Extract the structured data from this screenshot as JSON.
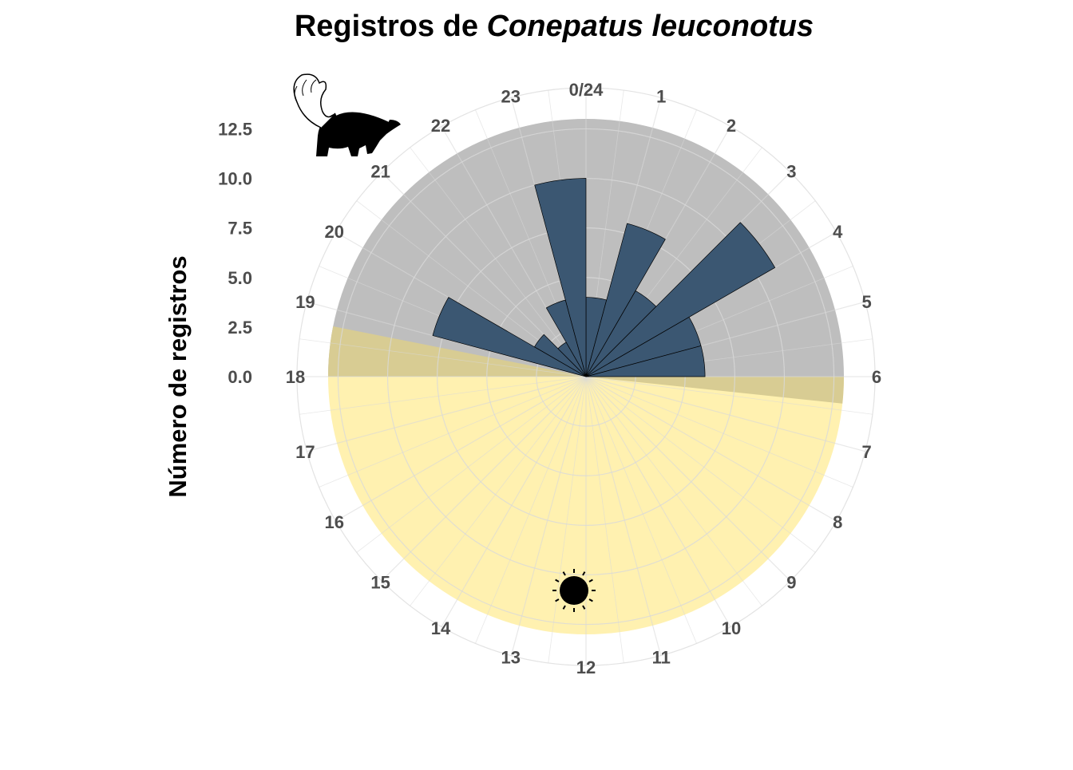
{
  "chart_data": {
    "type": "bar",
    "coordinate_system": "polar",
    "title_prefix": "Registros de ",
    "title_species": "Conepatus leuconotus",
    "ylabel": "Número de registros",
    "y_ticks": [
      "0.0",
      "2.5",
      "5.0",
      "7.5",
      "10.0",
      "12.5"
    ],
    "y_tick_values": [
      0,
      2.5,
      5,
      7.5,
      10,
      12.5
    ],
    "ylim": [
      0,
      13
    ],
    "hour_labels": [
      "0/24",
      "1",
      "2",
      "3",
      "4",
      "5",
      "6",
      "7",
      "8",
      "9",
      "10",
      "11",
      "12",
      "13",
      "14",
      "15",
      "16",
      "17",
      "18",
      "19",
      "20",
      "21",
      "22",
      "23"
    ],
    "bins": [
      {
        "hour_start": 0,
        "value": 4
      },
      {
        "hour_start": 1,
        "value": 8
      },
      {
        "hour_start": 2,
        "value": 5
      },
      {
        "hour_start": 3,
        "value": 11
      },
      {
        "hour_start": 4,
        "value": 6
      },
      {
        "hour_start": 5,
        "value": 6
      },
      {
        "hour_start": 18,
        "value": 0
      },
      {
        "hour_start": 19,
        "value": 8
      },
      {
        "hour_start": 20,
        "value": 3
      },
      {
        "hour_start": 21,
        "value": 2
      },
      {
        "hour_start": 22,
        "value": 4
      },
      {
        "hour_start": 23,
        "value": 10
      }
    ],
    "night_period_hours": [
      18,
      30
    ],
    "day_period_hours": [
      6,
      18
    ],
    "sunrise_hour": 6.4,
    "sunset_hour": 18.75,
    "night_color": "#bebebe",
    "day_color": "#fff1b0",
    "twilight_color": "#d8cc93",
    "bar_color": "#3b5772",
    "grid": true,
    "icons": [
      "moon-icon",
      "sun-icon",
      "skunk-icon"
    ]
  }
}
